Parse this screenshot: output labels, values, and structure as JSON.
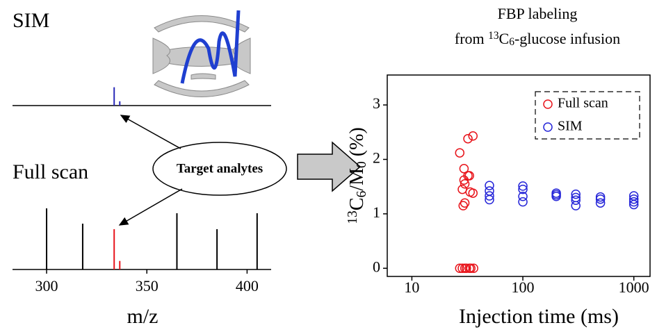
{
  "chart_data": [
    {
      "type": "spectrum",
      "xlabel": "m/z",
      "xlim": [
        283,
        412
      ],
      "xticks": [
        300,
        350,
        400
      ],
      "annotation": "Target analytes",
      "spectra": [
        {
          "label": "SIM",
          "color": "#3a2fa0",
          "x": [
            333.7,
            336.5
          ],
          "values": [
            30,
            7
          ],
          "colors": [
            "#2929b8",
            "#2929b8"
          ]
        },
        {
          "label": "Full scan",
          "color": "#e8141b",
          "x": [
            300,
            318,
            333.7,
            336.5,
            365,
            385,
            405
          ],
          "values": [
            100,
            75,
            66,
            14,
            92,
            66,
            92
          ],
          "colors": [
            "#000000",
            "#000000",
            "#e8141b",
            "#e8141b",
            "#000000",
            "#000000",
            "#000000"
          ]
        }
      ]
    },
    {
      "type": "scatter",
      "title": "FBP labeling",
      "subtitle_parts": [
        "from ",
        "13",
        "C",
        "6",
        "-glucose infusion"
      ],
      "ylabel_parts": [
        "13",
        "C",
        "6",
        "/M",
        "0",
        " (%)"
      ],
      "xlabel": "Injection time (ms)",
      "xscale": "log",
      "xlim": [
        6,
        1400
      ],
      "xticks": [
        10,
        100,
        1000
      ],
      "ylim": [
        -0.15,
        3.55
      ],
      "yticks": [
        0,
        1,
        2,
        3
      ],
      "legend": "upper right",
      "series": [
        {
          "name": "Full scan",
          "color": "#e8141b",
          "x": [
            35.5,
            32,
            27,
            29.5,
            32,
            33,
            29.5,
            30,
            28.5,
            33.5,
            35.5,
            30,
            29,
            27,
            28.5,
            30,
            31,
            33,
            34,
            36
          ],
          "values": [
            2.43,
            2.38,
            2.12,
            1.83,
            1.7,
            1.7,
            1.62,
            1.55,
            1.45,
            1.4,
            1.38,
            1.2,
            1.15,
            0,
            0,
            0,
            0,
            0,
            0,
            0
          ]
        },
        {
          "name": "SIM",
          "color": "#2525d8",
          "x": [
            50,
            50,
            50,
            50,
            100,
            100,
            100,
            100,
            200,
            200,
            200,
            300,
            300,
            300,
            300,
            500,
            500,
            500,
            1000,
            1000,
            1000,
            1000
          ],
          "values": [
            1.52,
            1.42,
            1.33,
            1.26,
            1.51,
            1.45,
            1.32,
            1.22,
            1.38,
            1.35,
            1.32,
            1.36,
            1.3,
            1.25,
            1.15,
            1.31,
            1.27,
            1.2,
            1.33,
            1.27,
            1.22,
            1.17
          ]
        }
      ]
    }
  ]
}
